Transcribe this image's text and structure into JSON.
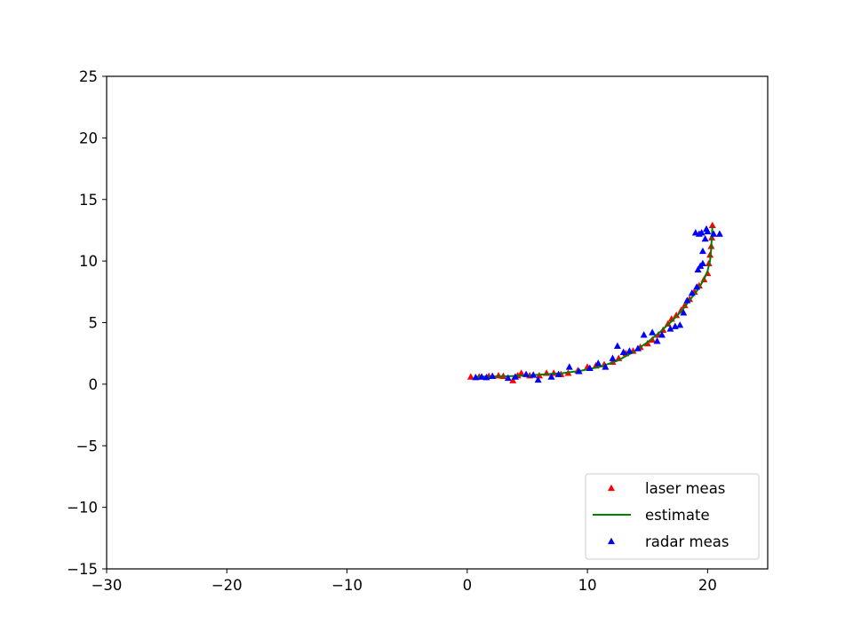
{
  "chart_data": {
    "type": "scatter",
    "title": "",
    "xlabel": "",
    "ylabel": "",
    "xlim": [
      -30,
      25
    ],
    "ylim": [
      -15,
      25
    ],
    "x_ticks": [
      -30,
      -20,
      -10,
      0,
      10,
      20
    ],
    "y_ticks": [
      -15,
      -10,
      -5,
      0,
      5,
      10,
      15,
      20,
      25
    ],
    "x_tick_labels": [
      "−30",
      "−20",
      "−10",
      "0",
      "10",
      "20"
    ],
    "y_tick_labels": [
      "−15",
      "−10",
      "−5",
      "0",
      "5",
      "10",
      "15",
      "20",
      "25"
    ],
    "grid": false,
    "legend_position": "lower-right",
    "series": [
      {
        "name": "laser meas",
        "kind": "marker",
        "marker": "triangle",
        "color": "#ff0000",
        "points": [
          [
            0.3,
            0.6
          ],
          [
            1.0,
            0.6
          ],
          [
            1.8,
            0.65
          ],
          [
            2.6,
            0.7
          ],
          [
            3.0,
            0.65
          ],
          [
            3.8,
            0.3
          ],
          [
            4.2,
            0.7
          ],
          [
            4.5,
            0.9
          ],
          [
            5.2,
            0.7
          ],
          [
            6.0,
            0.7
          ],
          [
            6.6,
            0.9
          ],
          [
            7.2,
            0.9
          ],
          [
            7.8,
            0.8
          ],
          [
            8.4,
            0.9
          ],
          [
            9.2,
            1.1
          ],
          [
            10.0,
            1.4
          ],
          [
            10.7,
            1.5
          ],
          [
            11.4,
            1.6
          ],
          [
            12.1,
            1.8
          ],
          [
            12.6,
            2.1
          ],
          [
            13.2,
            2.5
          ],
          [
            13.8,
            2.7
          ],
          [
            14.4,
            3.0
          ],
          [
            15.0,
            3.3
          ],
          [
            15.4,
            3.6
          ],
          [
            15.9,
            4.0
          ],
          [
            16.3,
            4.4
          ],
          [
            16.7,
            4.9
          ],
          [
            17.0,
            5.3
          ],
          [
            17.4,
            5.6
          ],
          [
            17.8,
            6.0
          ],
          [
            18.1,
            6.4
          ],
          [
            18.5,
            6.9
          ],
          [
            18.9,
            7.5
          ],
          [
            19.3,
            8.0
          ],
          [
            19.7,
            8.5
          ],
          [
            20.0,
            9.0
          ],
          [
            20.1,
            9.8
          ],
          [
            20.2,
            10.5
          ],
          [
            20.3,
            11.2
          ],
          [
            20.35,
            11.9
          ],
          [
            20.4,
            12.9
          ]
        ]
      },
      {
        "name": "estimate",
        "kind": "line",
        "color": "#008000",
        "points": [
          [
            0.6,
            0.6
          ],
          [
            2.0,
            0.62
          ],
          [
            3.5,
            0.65
          ],
          [
            5.0,
            0.7
          ],
          [
            6.5,
            0.8
          ],
          [
            8.0,
            0.9
          ],
          [
            9.5,
            1.1
          ],
          [
            11.0,
            1.4
          ],
          [
            12.5,
            1.9
          ],
          [
            13.8,
            2.6
          ],
          [
            15.0,
            3.4
          ],
          [
            16.0,
            4.2
          ],
          [
            17.0,
            5.1
          ],
          [
            17.8,
            5.9
          ],
          [
            18.5,
            6.8
          ],
          [
            19.2,
            7.7
          ],
          [
            19.7,
            8.5
          ],
          [
            20.0,
            9.2
          ],
          [
            20.2,
            10.0
          ],
          [
            20.3,
            11.0
          ],
          [
            20.35,
            12.0
          ],
          [
            20.4,
            12.8
          ]
        ]
      },
      {
        "name": "radar meas",
        "kind": "marker",
        "marker": "triangle",
        "color": "#0000ff",
        "points": [
          [
            0.7,
            0.55
          ],
          [
            1.2,
            0.6
          ],
          [
            1.6,
            0.55
          ],
          [
            2.1,
            0.65
          ],
          [
            3.4,
            0.5
          ],
          [
            4.0,
            0.6
          ],
          [
            4.9,
            0.8
          ],
          [
            5.5,
            0.75
          ],
          [
            5.9,
            0.35
          ],
          [
            7.0,
            0.6
          ],
          [
            7.6,
            0.8
          ],
          [
            8.5,
            1.4
          ],
          [
            9.3,
            1.05
          ],
          [
            10.2,
            1.3
          ],
          [
            10.9,
            1.7
          ],
          [
            11.5,
            1.4
          ],
          [
            12.1,
            2.1
          ],
          [
            12.5,
            3.1
          ],
          [
            13.0,
            2.6
          ],
          [
            13.5,
            2.7
          ],
          [
            14.2,
            2.9
          ],
          [
            14.7,
            4.0
          ],
          [
            15.4,
            4.2
          ],
          [
            15.8,
            3.5
          ],
          [
            16.2,
            4.0
          ],
          [
            16.9,
            4.5
          ],
          [
            17.3,
            4.7
          ],
          [
            17.7,
            4.8
          ],
          [
            18.0,
            5.8
          ],
          [
            18.3,
            6.8
          ],
          [
            18.7,
            7.4
          ],
          [
            19.1,
            7.9
          ],
          [
            19.2,
            9.3
          ],
          [
            19.4,
            9.6
          ],
          [
            19.6,
            10.8
          ],
          [
            19.8,
            11.8
          ],
          [
            19.3,
            12.2
          ],
          [
            19.5,
            12.3
          ],
          [
            20.0,
            12.4
          ],
          [
            20.5,
            12.2
          ],
          [
            19.9,
            12.6
          ],
          [
            21.0,
            12.2
          ],
          [
            19.6,
            9.8
          ],
          [
            19.0,
            12.3
          ]
        ]
      }
    ]
  }
}
